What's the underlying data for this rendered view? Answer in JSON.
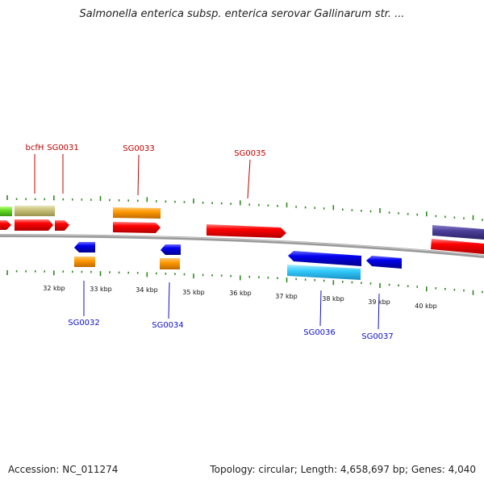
{
  "header": {
    "title": "Salmonella enterica subsp. enterica serovar Gallinarum str. ..."
  },
  "footer": {
    "accession": "Accession: NC_011274",
    "summary": "Topology: circular; Length: 4,658,697 bp; Genes: 4,040"
  },
  "genes_top": [
    {
      "label": "bcfH"
    },
    {
      "label": "SG0031"
    },
    {
      "label": "SG0033"
    },
    {
      "label": "SG0035"
    }
  ],
  "genes_bottom": [
    {
      "label": "SG0032"
    },
    {
      "label": "SG0034"
    },
    {
      "label": "SG0036"
    },
    {
      "label": "SG0037"
    }
  ],
  "scale_labels": [
    "32 kbp",
    "33 kbp",
    "34 kbp",
    "35 kbp",
    "36 kbp",
    "37 kbp",
    "38 kbp",
    "39 kbp",
    "40 kbp"
  ],
  "colors": {
    "forward_cds": "#ff0000",
    "reverse_cds": "#0000ff",
    "orange_feature": "#ff9900",
    "olive_feature": "#c8c27a",
    "cyan_feature": "#33ccff",
    "purple_feature": "#4b3f99",
    "green_feature": "#66dd22",
    "backbone": "#888888",
    "tick": "#2a8a1a",
    "label_top": "#c00000",
    "label_bottom": "#1010cc"
  }
}
